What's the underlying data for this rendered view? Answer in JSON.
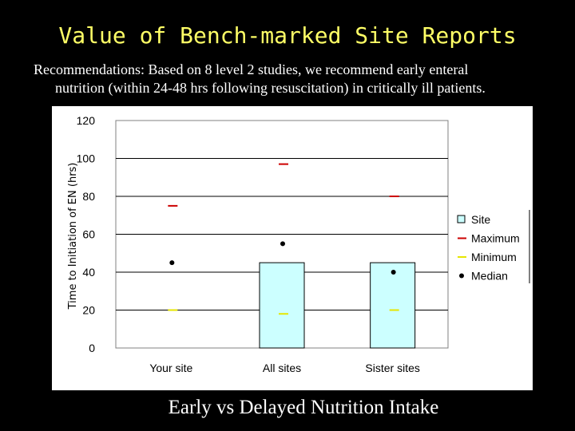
{
  "slide": {
    "title": "Value of Bench-marked Site Reports",
    "recommendation_line1": "Recommendations: Based on 8 level 2 studies, we recommend early enteral",
    "recommendation_line2": "nutrition (within 24-48 hrs following resuscitation) in critically ill patients.",
    "caption": "Early vs Delayed Nutrition Intake"
  },
  "colors": {
    "title": "#ffff66",
    "bar_fill": "#ccffff",
    "maximum": "#cc0000",
    "minimum": "#e6e600",
    "median": "#000000"
  },
  "chart_data": {
    "type": "bar",
    "title": "",
    "xlabel": "",
    "ylabel": "Time to Initiation of EN (hrs)",
    "ylim": [
      0,
      120
    ],
    "yticks": [
      0,
      20,
      40,
      60,
      80,
      100,
      120
    ],
    "categories": [
      "Your site",
      "All sites",
      "Sister sites"
    ],
    "series": [
      {
        "name": "Site",
        "kind": "bar",
        "values": [
          null,
          45,
          45
        ]
      },
      {
        "name": "Maximum",
        "kind": "dash",
        "values": [
          75,
          97,
          80
        ]
      },
      {
        "name": "Minimum",
        "kind": "dash",
        "values": [
          20,
          18,
          20
        ]
      },
      {
        "name": "Median",
        "kind": "dot",
        "values": [
          45,
          55,
          40
        ]
      }
    ],
    "legend_position": "right"
  }
}
